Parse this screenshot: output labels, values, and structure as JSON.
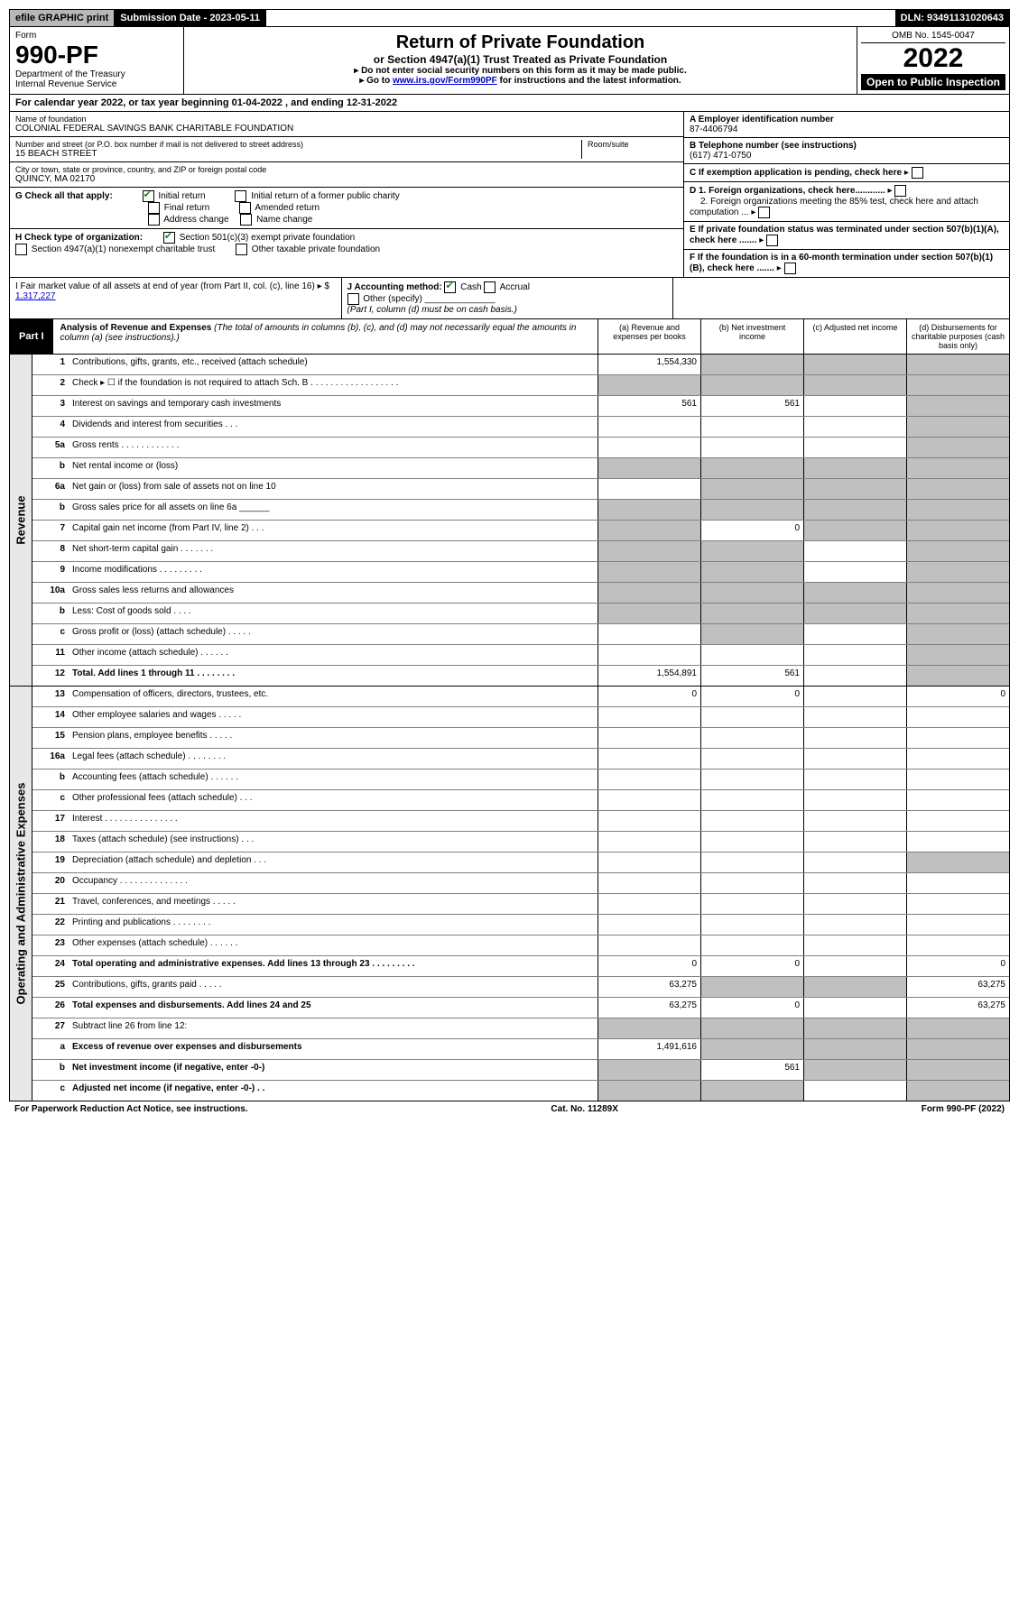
{
  "top": {
    "efile": "efile GRAPHIC print",
    "sub_label": "Submission Date - 2023-05-11",
    "dln": "DLN: 93491131020643"
  },
  "header": {
    "form_word": "Form",
    "form_number": "990-PF",
    "dept": "Department of the Treasury",
    "irs": "Internal Revenue Service",
    "title": "Return of Private Foundation",
    "subtitle": "or Section 4947(a)(1) Trust Treated as Private Foundation",
    "note1": "▸ Do not enter social security numbers on this form as it may be made public.",
    "note2_pre": "▸ Go to ",
    "note2_link": "www.irs.gov/Form990PF",
    "note2_post": " for instructions and the latest information.",
    "omb": "OMB No. 1545-0047",
    "year": "2022",
    "open": "Open to Public Inspection"
  },
  "calendar": {
    "text_pre": "For calendar year 2022, or tax year beginning ",
    "begin": "01-04-2022",
    "text_mid": " , and ending ",
    "end": "12-31-2022"
  },
  "info": {
    "name_header": "Name of foundation",
    "name": "COLONIAL FEDERAL SAVINGS BANK CHARITABLE FOUNDATION",
    "street_header": "Number and street (or P.O. box number if mail is not delivered to street address)",
    "street": "15 BEACH STREET",
    "room_header": "Room/suite",
    "room": "",
    "city_header": "City or town, state or province, country, and ZIP or foreign postal code",
    "city": "QUINCY, MA  02170",
    "ein_header": "A Employer identification number",
    "ein": "87-4406794",
    "phone_header": "B Telephone number (see instructions)",
    "phone": "(617) 471-0750",
    "c_label": "C If exemption application is pending, check here",
    "d1_label": "D 1. Foreign organizations, check here............",
    "d2_label": "2. Foreign organizations meeting the 85% test, check here and attach computation ...",
    "e_label": "E  If private foundation status was terminated under section 507(b)(1)(A), check here .......",
    "f_label": "F  If the foundation is in a 60-month termination under section 507(b)(1)(B), check here .......",
    "g_label": "G Check all that apply:",
    "g_initial": "Initial return",
    "g_initial_former": "Initial return of a former public charity",
    "g_final": "Final return",
    "g_amended": "Amended return",
    "g_address": "Address change",
    "g_name_change": "Name change",
    "h_label": "H Check type of organization:",
    "h_501c3": "Section 501(c)(3) exempt private foundation",
    "h_4947": "Section 4947(a)(1) nonexempt charitable trust",
    "h_other": "Other taxable private foundation",
    "i_label": "I Fair market value of all assets at end of year (from Part II, col. (c), line 16) ▸ $",
    "i_value": "1,317,227",
    "j_label": "J Accounting method:",
    "j_cash": "Cash",
    "j_accrual": "Accrual",
    "j_other": "Other (specify)",
    "j_note": "(Part I, column (d) must be on cash basis.)"
  },
  "part1": {
    "label": "Part I",
    "title": "Analysis of Revenue and Expenses",
    "desc": " (The total of amounts in columns (b), (c), and (d) may not necessarily equal the amounts in column (a) (see instructions).)",
    "col_a": "(a) Revenue and expenses per books",
    "col_b": "(b) Net investment income",
    "col_c": "(c) Adjusted net income",
    "col_d": "(d) Disbursements for charitable purposes (cash basis only)"
  },
  "sides": {
    "revenue": "Revenue",
    "oae": "Operating and Administrative Expenses"
  },
  "rows": [
    {
      "n": "1",
      "label": "Contributions, gifts, grants, etc., received (attach schedule)",
      "a": "1,554,330",
      "b": "",
      "c": "",
      "d": "",
      "ga": false,
      "gb": true,
      "gc": true,
      "gd": true
    },
    {
      "n": "2",
      "label": "Check ▸ ☐ if the foundation is not required to attach Sch. B  . . . . . . . . . . . . . . . . . .",
      "a": "",
      "b": "",
      "c": "",
      "d": "",
      "ga": true,
      "gb": true,
      "gc": true,
      "gd": true
    },
    {
      "n": "3",
      "label": "Interest on savings and temporary cash investments",
      "a": "561",
      "b": "561",
      "c": "",
      "d": "",
      "ga": false,
      "gb": false,
      "gc": false,
      "gd": true
    },
    {
      "n": "4",
      "label": "Dividends and interest from securities   . . .",
      "a": "",
      "b": "",
      "c": "",
      "d": "",
      "ga": false,
      "gb": false,
      "gc": false,
      "gd": true
    },
    {
      "n": "5a",
      "label": "Gross rents  . . . . . . . . . . . .",
      "a": "",
      "b": "",
      "c": "",
      "d": "",
      "ga": false,
      "gb": false,
      "gc": false,
      "gd": true
    },
    {
      "n": "b",
      "label": "Net rental income or (loss)",
      "a": "",
      "b": "",
      "c": "",
      "d": "",
      "ga": true,
      "gb": true,
      "gc": true,
      "gd": true
    },
    {
      "n": "6a",
      "label": "Net gain or (loss) from sale of assets not on line 10",
      "a": "",
      "b": "",
      "c": "",
      "d": "",
      "ga": false,
      "gb": true,
      "gc": true,
      "gd": true
    },
    {
      "n": "b",
      "label": "Gross sales price for all assets on line 6a ______",
      "a": "",
      "b": "",
      "c": "",
      "d": "",
      "ga": true,
      "gb": true,
      "gc": true,
      "gd": true
    },
    {
      "n": "7",
      "label": "Capital gain net income (from Part IV, line 2)  . . .",
      "a": "",
      "b": "0",
      "c": "",
      "d": "",
      "ga": true,
      "gb": false,
      "gc": true,
      "gd": true
    },
    {
      "n": "8",
      "label": "Net short-term capital gain  . . . . . . .",
      "a": "",
      "b": "",
      "c": "",
      "d": "",
      "ga": true,
      "gb": true,
      "gc": false,
      "gd": true
    },
    {
      "n": "9",
      "label": "Income modifications  . . . . . . . . .",
      "a": "",
      "b": "",
      "c": "",
      "d": "",
      "ga": true,
      "gb": true,
      "gc": false,
      "gd": true
    },
    {
      "n": "10a",
      "label": "Gross sales less returns and allowances",
      "a": "",
      "b": "",
      "c": "",
      "d": "",
      "ga": true,
      "gb": true,
      "gc": true,
      "gd": true
    },
    {
      "n": "b",
      "label": "Less: Cost of goods sold  . . . .",
      "a": "",
      "b": "",
      "c": "",
      "d": "",
      "ga": true,
      "gb": true,
      "gc": true,
      "gd": true
    },
    {
      "n": "c",
      "label": "Gross profit or (loss) (attach schedule)  . . . . .",
      "a": "",
      "b": "",
      "c": "",
      "d": "",
      "ga": false,
      "gb": true,
      "gc": false,
      "gd": true
    },
    {
      "n": "11",
      "label": "Other income (attach schedule)  . . . . . .",
      "a": "",
      "b": "",
      "c": "",
      "d": "",
      "ga": false,
      "gb": false,
      "gc": false,
      "gd": true
    },
    {
      "n": "12",
      "label": "Total. Add lines 1 through 11  . . . . . . . .",
      "bold": true,
      "a": "1,554,891",
      "b": "561",
      "c": "",
      "d": "",
      "ga": false,
      "gb": false,
      "gc": false,
      "gd": true
    }
  ],
  "exp_rows": [
    {
      "n": "13",
      "label": "Compensation of officers, directors, trustees, etc.",
      "a": "0",
      "b": "0",
      "c": "",
      "d": "0"
    },
    {
      "n": "14",
      "label": "Other employee salaries and wages  . . . . .",
      "a": "",
      "b": "",
      "c": "",
      "d": ""
    },
    {
      "n": "15",
      "label": "Pension plans, employee benefits  . . . . .",
      "a": "",
      "b": "",
      "c": "",
      "d": ""
    },
    {
      "n": "16a",
      "label": "Legal fees (attach schedule)  . . . . . . . .",
      "a": "",
      "b": "",
      "c": "",
      "d": ""
    },
    {
      "n": "b",
      "label": "Accounting fees (attach schedule)  . . . . . .",
      "a": "",
      "b": "",
      "c": "",
      "d": ""
    },
    {
      "n": "c",
      "label": "Other professional fees (attach schedule)  . . .",
      "a": "",
      "b": "",
      "c": "",
      "d": ""
    },
    {
      "n": "17",
      "label": "Interest  . . . . . . . . . . . . . . .",
      "a": "",
      "b": "",
      "c": "",
      "d": ""
    },
    {
      "n": "18",
      "label": "Taxes (attach schedule) (see instructions)  . . .",
      "a": "",
      "b": "",
      "c": "",
      "d": ""
    },
    {
      "n": "19",
      "label": "Depreciation (attach schedule) and depletion  . . .",
      "a": "",
      "b": "",
      "c": "",
      "d": "",
      "gd": true
    },
    {
      "n": "20",
      "label": "Occupancy  . . . . . . . . . . . . . .",
      "a": "",
      "b": "",
      "c": "",
      "d": ""
    },
    {
      "n": "21",
      "label": "Travel, conferences, and meetings  . . . . .",
      "a": "",
      "b": "",
      "c": "",
      "d": ""
    },
    {
      "n": "22",
      "label": "Printing and publications  . . . . . . . .",
      "a": "",
      "b": "",
      "c": "",
      "d": ""
    },
    {
      "n": "23",
      "label": "Other expenses (attach schedule)  . . . . . .",
      "a": "",
      "b": "",
      "c": "",
      "d": ""
    },
    {
      "n": "24",
      "label": "Total operating and administrative expenses. Add lines 13 through 23  . . . . . . . . .",
      "bold": true,
      "a": "0",
      "b": "0",
      "c": "",
      "d": "0"
    },
    {
      "n": "25",
      "label": "Contributions, gifts, grants paid  . . . . .",
      "a": "63,275",
      "b": "",
      "c": "",
      "d": "63,275",
      "gb": true,
      "gc": true
    },
    {
      "n": "26",
      "label": "Total expenses and disbursements. Add lines 24 and 25",
      "bold": true,
      "a": "63,275",
      "b": "0",
      "c": "",
      "d": "63,275"
    },
    {
      "n": "27",
      "label": "Subtract line 26 from line 12:",
      "a": "",
      "b": "",
      "c": "",
      "d": "",
      "ga": true,
      "gb": true,
      "gc": true,
      "gd": true
    },
    {
      "n": "a",
      "label": "Excess of revenue over expenses and disbursements",
      "bold": true,
      "a": "1,491,616",
      "b": "",
      "c": "",
      "d": "",
      "gb": true,
      "gc": true,
      "gd": true
    },
    {
      "n": "b",
      "label": "Net investment income (if negative, enter -0-)",
      "bold": true,
      "a": "",
      "b": "561",
      "c": "",
      "d": "",
      "ga": true,
      "gc": true,
      "gd": true
    },
    {
      "n": "c",
      "label": "Adjusted net income (if negative, enter -0-)  . .",
      "bold": true,
      "a": "",
      "b": "",
      "c": "",
      "d": "",
      "ga": true,
      "gb": true,
      "gd": true
    }
  ],
  "footer": {
    "left": "For Paperwork Reduction Act Notice, see instructions.",
    "center": "Cat. No. 11289X",
    "right": "Form 990-PF (2022)"
  }
}
